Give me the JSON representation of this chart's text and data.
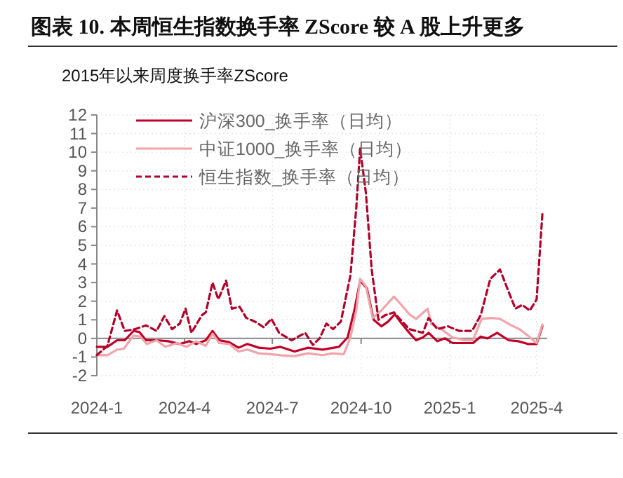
{
  "chart_data": {
    "type": "line",
    "title": "图表 10. 本周恒生指数换手率 ZScore 较 A 股上升更多",
    "subtitle": "2015年以来周度换手率ZScore",
    "xlim": [
      "2024-01-01",
      "2025-04-12"
    ],
    "xticks": [
      {
        "value": "2024-01-01",
        "label": "2024-1"
      },
      {
        "value": "2024-04-01",
        "label": "2024-4"
      },
      {
        "value": "2024-07-01",
        "label": "2024-7"
      },
      {
        "value": "2024-10-01",
        "label": "2024-10"
      },
      {
        "value": "2025-01-01",
        "label": "2025-1"
      },
      {
        "value": "2025-04-01",
        "label": "2025-4"
      }
    ],
    "ylim": [
      -2,
      12
    ],
    "yticks": [
      -2,
      -1,
      0,
      1,
      2,
      3,
      4,
      5,
      6,
      7,
      8,
      9,
      10,
      11,
      12
    ],
    "grid": true,
    "legend": "top left",
    "series": [
      {
        "name": "沪深300_换手率（日均）",
        "color": "#c00028",
        "line_style": "solid",
        "x": [
          "2024-01-01",
          "2024-01-12",
          "2024-01-22",
          "2024-01-30",
          "2024-02-08",
          "2024-02-14",
          "2024-02-21",
          "2024-03-03",
          "2024-03-15",
          "2024-03-27",
          "2024-04-06",
          "2024-04-13",
          "2024-04-23",
          "2024-04-30",
          "2024-05-07",
          "2024-05-17",
          "2024-05-27",
          "2024-06-05",
          "2024-06-17",
          "2024-06-29",
          "2024-07-09",
          "2024-07-24",
          "2024-08-07",
          "2024-08-22",
          "2024-09-08",
          "2024-09-17",
          "2024-09-24",
          "2024-09-30",
          "2024-10-07",
          "2024-10-14",
          "2024-10-22",
          "2024-10-29",
          "2024-11-05",
          "2024-11-12",
          "2024-11-20",
          "2024-11-27",
          "2024-12-04",
          "2024-12-10",
          "2024-12-19",
          "2024-12-27",
          "2025-01-04",
          "2025-01-17",
          "2025-01-25",
          "2025-02-02",
          "2025-02-09",
          "2025-02-19",
          "2025-03-03",
          "2025-03-13",
          "2025-03-23",
          "2025-04-01",
          "2025-04-07"
        ],
        "values": [
          -0.45,
          -0.45,
          -0.1,
          -0.1,
          0.4,
          0.35,
          -0.1,
          -0.1,
          -0.15,
          -0.3,
          -0.15,
          -0.3,
          -0.1,
          0.4,
          -0.1,
          -0.2,
          -0.5,
          -0.3,
          -0.5,
          -0.55,
          -0.45,
          -0.7,
          -0.5,
          -0.6,
          -0.45,
          0.05,
          1.5,
          3.1,
          2.7,
          1.0,
          0.65,
          0.9,
          1.3,
          0.8,
          0.3,
          -0.1,
          0.05,
          0.3,
          -0.15,
          0,
          -0.25,
          -0.25,
          -0.25,
          0.1,
          0,
          0.3,
          -0.1,
          -0.15,
          -0.3,
          -0.3,
          0.65
        ]
      },
      {
        "name": "中证1000_换手率（日均）",
        "color": "#f2a3aa",
        "line_style": "solid",
        "x": [
          "2024-01-01",
          "2024-01-12",
          "2024-01-22",
          "2024-01-29",
          "2024-02-08",
          "2024-02-15",
          "2024-02-22",
          "2024-03-03",
          "2024-03-12",
          "2024-03-24",
          "2024-04-03",
          "2024-04-13",
          "2024-04-23",
          "2024-04-30",
          "2024-05-07",
          "2024-05-17",
          "2024-05-27",
          "2024-06-05",
          "2024-06-17",
          "2024-06-29",
          "2024-07-09",
          "2024-07-24",
          "2024-08-07",
          "2024-08-22",
          "2024-09-01",
          "2024-09-13",
          "2024-09-20",
          "2024-09-26",
          "2024-09-30",
          "2024-10-06",
          "2024-10-13",
          "2024-10-22",
          "2024-11-04",
          "2024-11-11",
          "2024-11-20",
          "2024-11-27",
          "2024-12-09",
          "2024-12-13",
          "2024-12-23",
          "2025-01-04",
          "2025-01-17",
          "2025-01-25",
          "2025-02-03",
          "2025-02-13",
          "2025-02-22",
          "2025-03-04",
          "2025-03-14",
          "2025-03-23",
          "2025-04-01",
          "2025-04-07"
        ],
        "values": [
          -0.9,
          -0.9,
          -0.6,
          -0.55,
          0.15,
          0.1,
          -0.3,
          -0.1,
          -0.45,
          -0.25,
          -0.45,
          -0.15,
          -0.4,
          0.25,
          -0.25,
          -0.3,
          -0.7,
          -0.6,
          -0.8,
          -0.85,
          -0.9,
          -0.95,
          -0.8,
          -0.9,
          -0.8,
          -0.85,
          0.05,
          1.5,
          3.2,
          2.8,
          1.1,
          1.5,
          2.25,
          1.85,
          1.3,
          1.05,
          1.6,
          0.75,
          0.5,
          0.05,
          -0.1,
          -0.1,
          1.05,
          1.1,
          1.05,
          0.75,
          0.5,
          0.15,
          -0.25,
          0.75
        ]
      },
      {
        "name": "恒生指数_换手率（日均）",
        "color": "#b0002a",
        "line_style": "dashed",
        "x": [
          "2024-01-01",
          "2024-01-12",
          "2024-01-22",
          "2024-01-30",
          "2024-02-10",
          "2024-02-21",
          "2024-03-03",
          "2024-03-11",
          "2024-03-19",
          "2024-03-27",
          "2024-04-02",
          "2024-04-08",
          "2024-04-19",
          "2024-04-23",
          "2024-04-30",
          "2024-05-06",
          "2024-05-14",
          "2024-05-20",
          "2024-05-28",
          "2024-06-04",
          "2024-06-13",
          "2024-06-22",
          "2024-06-30",
          "2024-07-08",
          "2024-07-21",
          "2024-08-04",
          "2024-08-12",
          "2024-08-19",
          "2024-08-26",
          "2024-09-02",
          "2024-09-10",
          "2024-09-20",
          "2024-09-26",
          "2024-09-30",
          "2024-10-06",
          "2024-10-12",
          "2024-10-19",
          "2024-10-26",
          "2024-11-04",
          "2024-11-11",
          "2024-11-20",
          "2024-11-27",
          "2024-12-04",
          "2024-12-10",
          "2024-12-19",
          "2024-12-30",
          "2025-01-11",
          "2025-01-24",
          "2025-02-02",
          "2025-02-12",
          "2025-02-22",
          "2025-03-03",
          "2025-03-10",
          "2025-03-17",
          "2025-03-25",
          "2025-04-01",
          "2025-04-07"
        ],
        "values": [
          -0.9,
          -0.4,
          1.5,
          0.4,
          0.5,
          0.7,
          0.4,
          1.2,
          0.5,
          0.8,
          1.6,
          0.3,
          1.25,
          1.4,
          3.0,
          2.1,
          3.1,
          1.6,
          1.7,
          1.1,
          0.9,
          0.6,
          1.05,
          0.3,
          -0.1,
          0.3,
          -0.35,
          0,
          0.8,
          0.5,
          0.9,
          3.4,
          7.0,
          10.2,
          7.8,
          3.7,
          1.0,
          1.25,
          1.4,
          1.0,
          0.5,
          0.4,
          0.3,
          1.1,
          0.5,
          0.65,
          0.4,
          0.4,
          1.25,
          3.2,
          3.7,
          2.5,
          1.6,
          1.8,
          1.5,
          2.1,
          6.7
        ]
      }
    ]
  }
}
